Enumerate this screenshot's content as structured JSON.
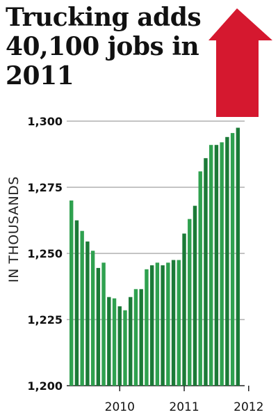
{
  "title": "Trucking adds 40,100 jobs in 2011",
  "colors": {
    "bar_light": "#2fa14f",
    "bar_dark": "#1b7a37",
    "arrow": "#d5182f",
    "grid": "#888888",
    "text": "#111111"
  },
  "chart_data": {
    "type": "bar",
    "title": "Trucking adds 40,100 jobs in 2011",
    "ylabel": "IN THOUSANDS",
    "xlabel": "",
    "ylim": [
      1200,
      1300
    ],
    "yticks": [
      1200,
      1225,
      1250,
      1275,
      1300
    ],
    "ytick_labels": [
      "1,200",
      "1,225",
      "1,250",
      "1,275",
      "1,300"
    ],
    "xticks": [
      {
        "label": "2010",
        "index": 9
      },
      {
        "label": "2011",
        "index": 21
      },
      {
        "label": "2012",
        "index": 33
      }
    ],
    "grid": true,
    "values": [
      1270,
      1262.5,
      1258.5,
      1254.5,
      1251,
      1244.5,
      1246.5,
      1233.5,
      1233,
      1230,
      1228.5,
      1233.5,
      1236.5,
      1236.5,
      1244,
      1245.5,
      1246.5,
      1245.5,
      1246.5,
      1247.5,
      1247.5,
      1257.5,
      1263,
      1268,
      1281,
      1286,
      1291,
      1291,
      1292,
      1294,
      1295.5,
      1297.5
    ]
  }
}
